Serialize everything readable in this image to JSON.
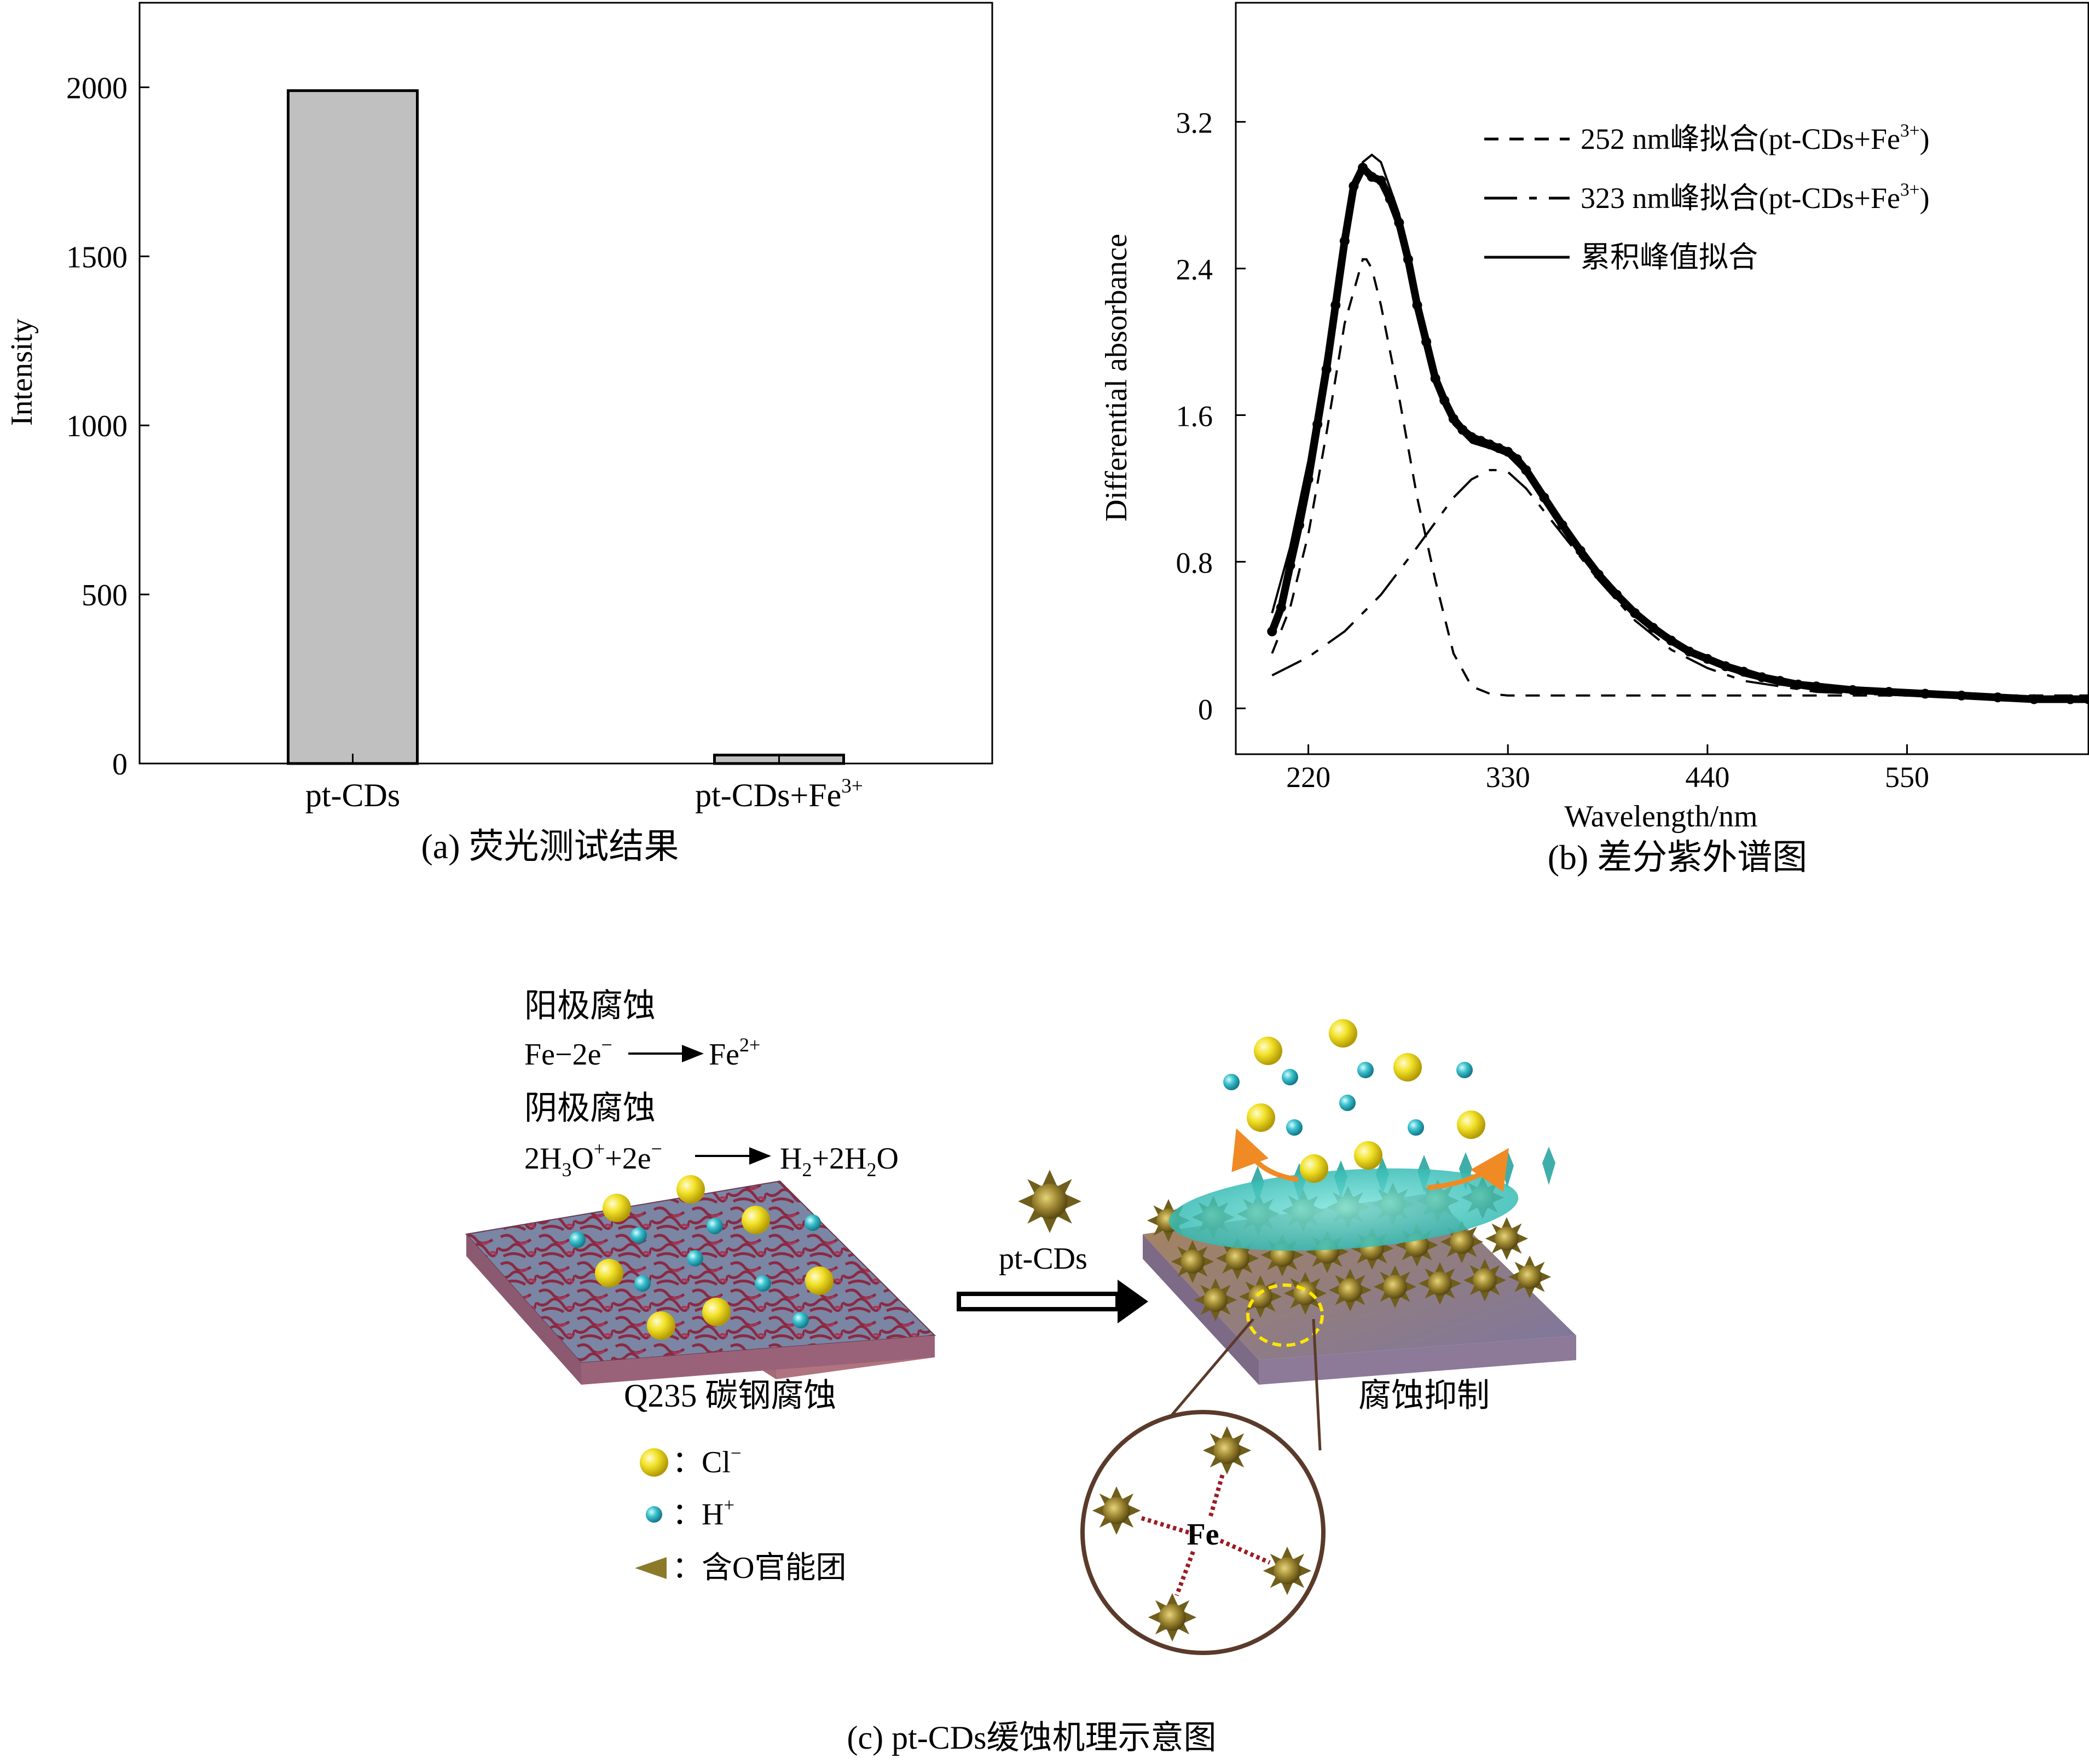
{
  "chart_data": [
    {
      "type": "bar",
      "title": "",
      "caption": "(a) 荧光测试结果",
      "xlabel": "",
      "ylabel": "Intensity",
      "ylim": [
        0,
        2250
      ],
      "yticks": [
        "0",
        "500",
        "1000",
        "1500",
        "2000"
      ],
      "categories": [
        "pt-CDs",
        "pt-CDs+Fe3+"
      ],
      "category_labels": [
        {
          "base": "pt-CDs",
          "sup": ""
        },
        {
          "base": "pt-CDs+Fe",
          "sup": "3+"
        }
      ],
      "values": [
        1990,
        25
      ],
      "bar_color": "#c0c0c0"
    },
    {
      "type": "line",
      "title": "",
      "caption": "(b) 差分紫外谱图",
      "xlabel": "Wavelength/nm",
      "ylabel": "Differential absorbance",
      "xlim": [
        180,
        650
      ],
      "ylim": [
        -0.25,
        3.85
      ],
      "xticks": [
        "220",
        "330",
        "440",
        "550"
      ],
      "yticks": [
        "0",
        "0.8",
        "1.6",
        "2.4",
        "3.2"
      ],
      "legend_position": "top-right",
      "legend": [
        {
          "style": "dashed",
          "base": "252 nm峰拟合(pt-CDs+Fe",
          "sup": "3+",
          "end": ")"
        },
        {
          "style": "dashdot",
          "base": "323 nm峰拟合(pt-CDs+Fe",
          "sup": "3+",
          "end": ")"
        },
        {
          "style": "solid",
          "base": "累积峰值拟合",
          "sup": "",
          "end": ""
        }
      ],
      "series": [
        {
          "style": "dashed",
          "x": [
            200,
            210,
            220,
            230,
            240,
            250,
            252,
            255,
            260,
            270,
            280,
            290,
            300,
            310,
            320,
            330,
            340,
            360,
            380,
            400,
            440,
            500,
            550,
            600,
            650
          ],
          "y": [
            0.3,
            0.55,
            0.95,
            1.5,
            2.1,
            2.45,
            2.45,
            2.4,
            2.2,
            1.7,
            1.15,
            0.7,
            0.3,
            0.12,
            0.08,
            0.07,
            0.07,
            0.07,
            0.07,
            0.07,
            0.07,
            0.07,
            0.07,
            0.07,
            0.07
          ]
        },
        {
          "style": "dashdot",
          "x": [
            200,
            220,
            240,
            260,
            280,
            300,
            310,
            320,
            323,
            330,
            340,
            360,
            380,
            400,
            420,
            440,
            460,
            500,
            550,
            600,
            650
          ],
          "y": [
            0.18,
            0.28,
            0.42,
            0.62,
            0.88,
            1.15,
            1.25,
            1.3,
            1.3,
            1.29,
            1.2,
            0.95,
            0.7,
            0.48,
            0.32,
            0.22,
            0.15,
            0.09,
            0.07,
            0.05,
            0.04
          ]
        },
        {
          "style": "solid",
          "x": [
            200,
            210,
            220,
            230,
            240,
            250,
            255,
            260,
            270,
            280,
            290,
            300,
            310,
            320,
            330,
            340,
            350,
            360,
            380,
            400,
            420,
            440,
            460,
            480,
            500,
            550,
            600,
            650
          ],
          "y": [
            0.52,
            0.88,
            1.35,
            1.95,
            2.58,
            2.98,
            3.02,
            2.98,
            2.7,
            2.2,
            1.8,
            1.55,
            1.45,
            1.42,
            1.38,
            1.28,
            1.15,
            1.0,
            0.75,
            0.53,
            0.37,
            0.26,
            0.18,
            0.13,
            0.1,
            0.08,
            0.06,
            0.05
          ]
        },
        {
          "style": "points",
          "x": [
            200,
            205,
            210,
            215,
            220,
            225,
            230,
            235,
            240,
            245,
            250,
            255,
            260,
            265,
            270,
            275,
            280,
            285,
            290,
            295,
            300,
            305,
            310,
            315,
            320,
            325,
            330,
            335,
            340,
            350,
            360,
            370,
            380,
            390,
            400,
            410,
            420,
            430,
            440,
            450,
            460,
            470,
            480,
            490,
            500,
            520,
            540,
            560,
            580,
            600,
            620,
            640,
            650
          ],
          "y": [
            0.42,
            0.55,
            0.78,
            1.0,
            1.25,
            1.55,
            1.85,
            2.2,
            2.55,
            2.85,
            2.95,
            2.9,
            2.88,
            2.78,
            2.65,
            2.45,
            2.2,
            2.0,
            1.8,
            1.68,
            1.58,
            1.52,
            1.48,
            1.46,
            1.44,
            1.42,
            1.4,
            1.36,
            1.3,
            1.15,
            1.0,
            0.86,
            0.73,
            0.62,
            0.52,
            0.44,
            0.37,
            0.31,
            0.27,
            0.23,
            0.2,
            0.17,
            0.15,
            0.13,
            0.12,
            0.1,
            0.09,
            0.08,
            0.07,
            0.06,
            0.05,
            0.05,
            0.05
          ]
        }
      ]
    }
  ],
  "diagram": {
    "caption": "(c) pt-CDs缓蚀机理示意图",
    "anode_title": "阳极腐蚀",
    "anode_eq": {
      "left": "Fe−2e",
      "left_sup": "−",
      "right": "Fe",
      "right_sup": "2+"
    },
    "cathode_title": "阴极腐蚀",
    "cathode_eq": {
      "a": "2H",
      "a_sub": "3",
      "b": "O",
      "b_sup": "+",
      "c": "+2e",
      "c_sup": "−",
      "d": "H",
      "d_sub": "2",
      "e": "+2H",
      "e_sub": "2",
      "f": "O"
    },
    "left_plate_label": "Q235 碳钢腐蚀",
    "arrow_label": "pt-CDs",
    "right_plate_label": "腐蚀抑制",
    "fe_label": "Fe",
    "legend": [
      {
        "icon": "yellow-sphere-icon",
        "base": "Cl",
        "sup": "−"
      },
      {
        "icon": "cyan-sphere-icon",
        "base": "H",
        "sup": "+"
      },
      {
        "icon": "cone-icon",
        "base": "含O官能团",
        "sup": ""
      }
    ],
    "colors": {
      "chloride": "#e8d21a",
      "proton": "#2bb3bf",
      "carbon_dot": "#8b7a2a",
      "shield": "#3fc7c0",
      "arrow_orange": "#f08a24",
      "zoom_circle": "#5a3a2a"
    }
  }
}
